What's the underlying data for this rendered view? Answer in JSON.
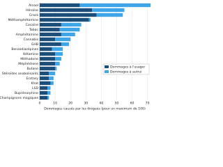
{
  "chart_data": {
    "type": "stacked-barh",
    "xlabel": "Dommages causés par les drogues (pour un maximum de 100)",
    "categories": [
      "Alcool",
      "Héroïne",
      "Crack",
      "Méthamphétamine",
      "Cocaïne",
      "Tabac",
      "Amphétamine",
      "Cannabis",
      "GHB",
      "Benzodiazépines",
      "Kétamine",
      "Méthadone",
      "Méphédrone",
      "Butane",
      "Stéroïdes anabolisants",
      "Ecstasy",
      "Khat",
      "LSD",
      "Buprénorphine",
      "Champignons magiques"
    ],
    "series": [
      {
        "name": "Dommages à l'usager",
        "color": "#1d4e7a",
        "values": [
          26,
          34,
          37,
          32,
          14,
          13,
          14,
          10,
          14,
          8,
          10,
          10,
          10,
          10,
          6,
          6,
          7,
          5,
          5,
          5
        ]
      },
      {
        "name": "Dommages à autrui",
        "color": "#3ea6e6",
        "values": [
          46,
          21,
          17,
          1,
          13,
          13,
          9,
          10,
          5,
          7,
          5,
          4,
          3,
          1,
          4,
          3,
          2,
          2,
          2,
          1
        ]
      }
    ],
    "xlim": [
      0,
      72
    ],
    "xticks": [
      0,
      10,
      20,
      30,
      40,
      50,
      60,
      70
    ],
    "grid": true,
    "legend": "lower right"
  }
}
